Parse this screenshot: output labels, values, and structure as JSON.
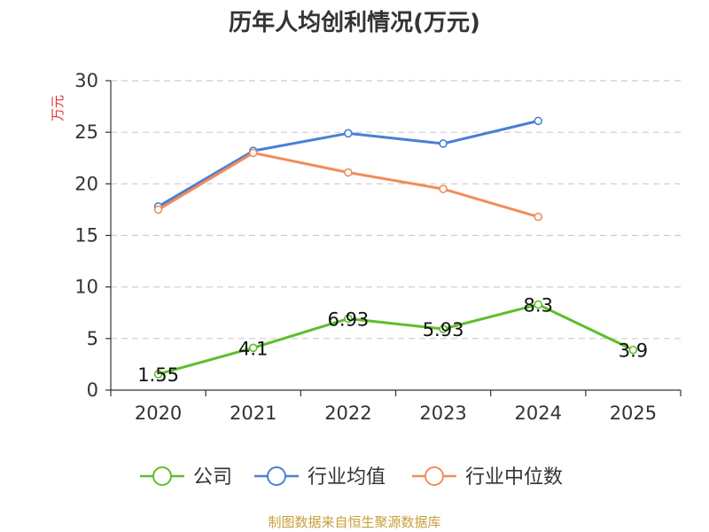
{
  "chart_data": {
    "type": "line",
    "title": "历年人均创利情况(万元)",
    "ylabel": "万元",
    "xlabel": "",
    "ylim": [
      0,
      30
    ],
    "yticks": [
      0,
      5,
      10,
      15,
      20,
      25,
      30
    ],
    "categories": [
      "2020",
      "2021",
      "2022",
      "2023",
      "2024",
      "2025"
    ],
    "grid": true,
    "legend_position": "bottom",
    "series": [
      {
        "name": "公司",
        "color": "#5cbf2a",
        "show_labels": true,
        "values": [
          1.55,
          4.1,
          6.93,
          5.93,
          8.3,
          3.9
        ],
        "labels": [
          "1.55",
          "4.1",
          "6.93",
          "5.93",
          "8.3",
          "3.9"
        ]
      },
      {
        "name": "行业均值",
        "color": "#4a7fd6",
        "show_labels": false,
        "values": [
          17.8,
          23.2,
          24.9,
          23.9,
          26.1,
          null
        ]
      },
      {
        "name": "行业中位数",
        "color": "#f28c5a",
        "show_labels": false,
        "values": [
          17.5,
          23.0,
          21.1,
          19.5,
          16.8,
          null
        ]
      }
    ],
    "source_text": "制图数据来自恒生聚源数据库",
    "colors": {
      "unit_label": "#e03030",
      "source": "#c8a03c",
      "axis": "#333333",
      "grid": "#cccccc"
    }
  }
}
